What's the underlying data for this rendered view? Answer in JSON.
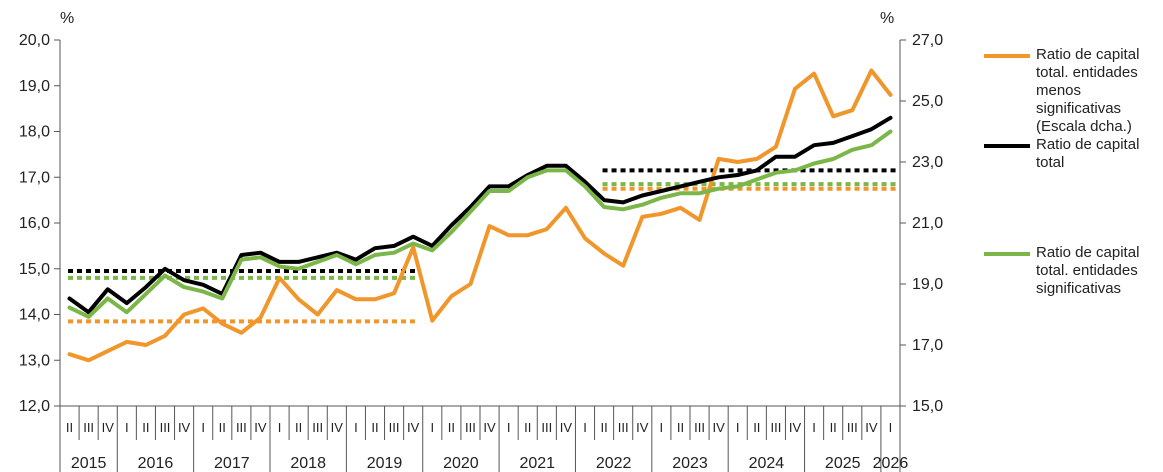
{
  "chart_data": {
    "type": "line",
    "left_axis": {
      "unit": "%",
      "ticks": [
        "20,0",
        "19,0",
        "18,0",
        "17,0",
        "16,0",
        "15,0",
        "14,0",
        "13,0",
        "12,0"
      ],
      "ylim": [
        12,
        20
      ]
    },
    "right_axis": {
      "unit": "%",
      "ticks": [
        "27,0",
        "25,0",
        "23,0",
        "21,0",
        "19,0",
        "17,0",
        "15,0"
      ],
      "ylim": [
        15,
        27
      ]
    },
    "quarters": [
      "II",
      "III",
      "IV",
      "I",
      "II",
      "III",
      "IV",
      "I",
      "II",
      "III",
      "IV",
      "I",
      "II",
      "III",
      "IV",
      "I",
      "II",
      "III",
      "IV",
      "I",
      "II",
      "III",
      "IV",
      "I",
      "II",
      "III",
      "IV",
      "I",
      "II",
      "III",
      "IV",
      "I",
      "II",
      "III",
      "IV",
      "I",
      "II",
      "III",
      "IV",
      "I",
      "II",
      "III",
      "IV",
      "I"
    ],
    "years": [
      "2015",
      "2016",
      "2017",
      "2018",
      "2019",
      "2020",
      "2021",
      "2022",
      "2023",
      "2024",
      "2025",
      "2026"
    ],
    "year_starts": [
      0,
      3,
      7,
      11,
      15,
      19,
      23,
      27,
      31,
      35,
      39,
      43
    ],
    "legend": [
      {
        "label": "Ratio de capital total. entidades menos significativas (Escala dcha.)",
        "color": "#f0962a"
      },
      {
        "label": "Ratio de capital total",
        "color": "#000000"
      },
      {
        "label": "Ratio de capital total. entidades significativas",
        "color": "#7ab648"
      }
    ],
    "series": [
      {
        "name": "Ratio de capital total. entidades menos significativas (Escala dcha.)",
        "axis": "right",
        "color": "#f0962a",
        "values": [
          16.7,
          16.5,
          16.8,
          17.1,
          17.0,
          17.3,
          18.0,
          18.2,
          17.7,
          17.4,
          17.9,
          19.2,
          18.5,
          18.0,
          18.8,
          18.5,
          18.5,
          18.7,
          20.2,
          17.8,
          18.6,
          19.0,
          20.9,
          20.6,
          20.6,
          20.8,
          21.5,
          20.5,
          20.0,
          19.6,
          21.2,
          21.3,
          21.5,
          21.1,
          23.1,
          23.0,
          23.1,
          23.5,
          25.4,
          25.9,
          24.5,
          24.7,
          26.0,
          25.2
        ]
      },
      {
        "name": "Ratio de capital total",
        "axis": "left",
        "color": "#000000",
        "values": [
          14.35,
          14.05,
          14.55,
          14.25,
          14.6,
          15.0,
          14.75,
          14.65,
          14.45,
          15.3,
          15.35,
          15.15,
          15.15,
          15.25,
          15.35,
          15.2,
          15.45,
          15.5,
          15.7,
          15.5,
          15.95,
          16.35,
          16.8,
          16.8,
          17.05,
          17.25,
          17.25,
          16.9,
          16.5,
          16.45,
          16.6,
          16.7,
          16.8,
          16.9,
          17.0,
          17.05,
          17.15,
          17.45,
          17.45,
          17.7,
          17.75,
          17.9,
          18.05,
          18.3
        ]
      },
      {
        "name": "Ratio de capital total. entidades significativas",
        "axis": "left",
        "color": "#7ab648",
        "values": [
          14.15,
          13.95,
          14.35,
          14.05,
          14.45,
          14.85,
          14.6,
          14.5,
          14.35,
          15.2,
          15.25,
          15.05,
          15.0,
          15.15,
          15.3,
          15.1,
          15.3,
          15.35,
          15.55,
          15.4,
          15.8,
          16.25,
          16.7,
          16.7,
          17.0,
          17.15,
          17.15,
          16.8,
          16.35,
          16.3,
          16.4,
          16.55,
          16.65,
          16.65,
          16.75,
          16.8,
          16.95,
          17.1,
          17.15,
          17.3,
          17.4,
          17.6,
          17.7,
          18.0
        ]
      }
    ],
    "averages": [
      {
        "color": "#000000",
        "axis": "left",
        "from": 0,
        "to": 19,
        "value": 14.95
      },
      {
        "color": "#7ab648",
        "axis": "left",
        "from": 0,
        "to": 19,
        "value": 14.8
      },
      {
        "color": "#f0962a",
        "axis": "left",
        "from": 0,
        "to": 19,
        "value": 13.85
      },
      {
        "color": "#000000",
        "axis": "left",
        "from": 28,
        "to": 44,
        "value": 17.15
      },
      {
        "color": "#7ab648",
        "axis": "left",
        "from": 28,
        "to": 44,
        "value": 16.85
      },
      {
        "color": "#f0962a",
        "axis": "left",
        "from": 28,
        "to": 44,
        "value": 16.75
      }
    ]
  }
}
